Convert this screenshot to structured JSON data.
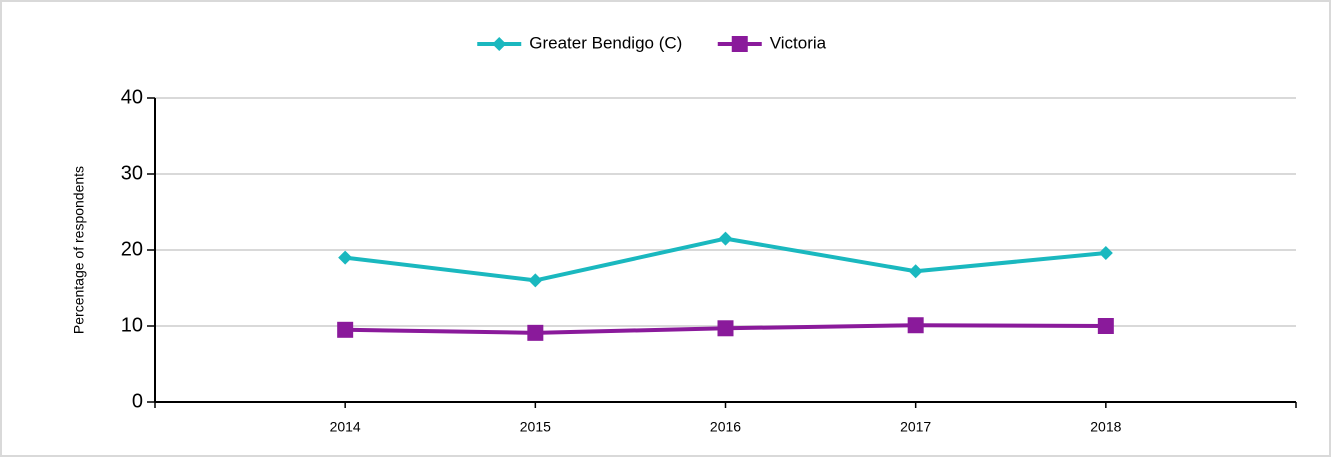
{
  "chart_data": {
    "type": "line",
    "categories": [
      "2014",
      "2015",
      "2016",
      "2017",
      "2018"
    ],
    "series": [
      {
        "name": "Greater Bendigo (C)",
        "color": "#1ab8bf",
        "marker": "diamond",
        "values": [
          19.0,
          16.0,
          21.5,
          17.2,
          19.6
        ]
      },
      {
        "name": "Victoria",
        "color": "#8a1a9b",
        "marker": "square",
        "values": [
          9.5,
          9.1,
          9.7,
          10.1,
          10.0
        ]
      }
    ],
    "y_label": "Percentage of respondents",
    "ylim": [
      0,
      40
    ],
    "yticks": [
      0,
      10,
      20,
      30,
      40
    ],
    "grid": true,
    "legend": "top"
  }
}
